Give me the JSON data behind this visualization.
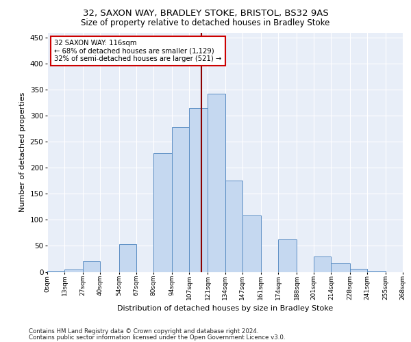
{
  "title1": "32, SAXON WAY, BRADLEY STOKE, BRISTOL, BS32 9AS",
  "title2": "Size of property relative to detached houses in Bradley Stoke",
  "xlabel": "Distribution of detached houses by size in Bradley Stoke",
  "ylabel": "Number of detached properties",
  "footnote1": "Contains HM Land Registry data © Crown copyright and database right 2024.",
  "footnote2": "Contains public sector information licensed under the Open Government Licence v3.0.",
  "annotation_title": "32 SAXON WAY: 116sqm",
  "annotation_line1": "← 68% of detached houses are smaller (1,129)",
  "annotation_line2": "32% of semi-detached houses are larger (521) →",
  "property_value": 116,
  "bin_edges": [
    0,
    13,
    27,
    40,
    54,
    67,
    80,
    94,
    107,
    121,
    134,
    147,
    161,
    174,
    188,
    201,
    214,
    228,
    241,
    255,
    268
  ],
  "bar_heights": [
    2,
    5,
    20,
    0,
    53,
    0,
    228,
    278,
    315,
    343,
    175,
    108,
    0,
    62,
    0,
    30,
    16,
    6,
    2,
    0
  ],
  "tick_labels": [
    "0sqm",
    "13sqm",
    "27sqm",
    "40sqm",
    "54sqm",
    "67sqm",
    "80sqm",
    "94sqm",
    "107sqm",
    "121sqm",
    "134sqm",
    "147sqm",
    "161sqm",
    "174sqm",
    "188sqm",
    "201sqm",
    "214sqm",
    "228sqm",
    "241sqm",
    "255sqm",
    "268sqm"
  ],
  "bar_color": "#c5d8f0",
  "bar_edge_color": "#5b8ec4",
  "vline_color": "#8b0000",
  "annotation_box_color": "#ffffff",
  "annotation_box_edge": "#cc0000",
  "bg_color": "#e8eef8",
  "grid_color": "#ffffff",
  "ylim": [
    0,
    460
  ],
  "yticks": [
    0,
    50,
    100,
    150,
    200,
    250,
    300,
    350,
    400,
    450
  ],
  "title1_fontsize": 9.5,
  "title2_fontsize": 8.5,
  "footnote_fontsize": 6.2
}
